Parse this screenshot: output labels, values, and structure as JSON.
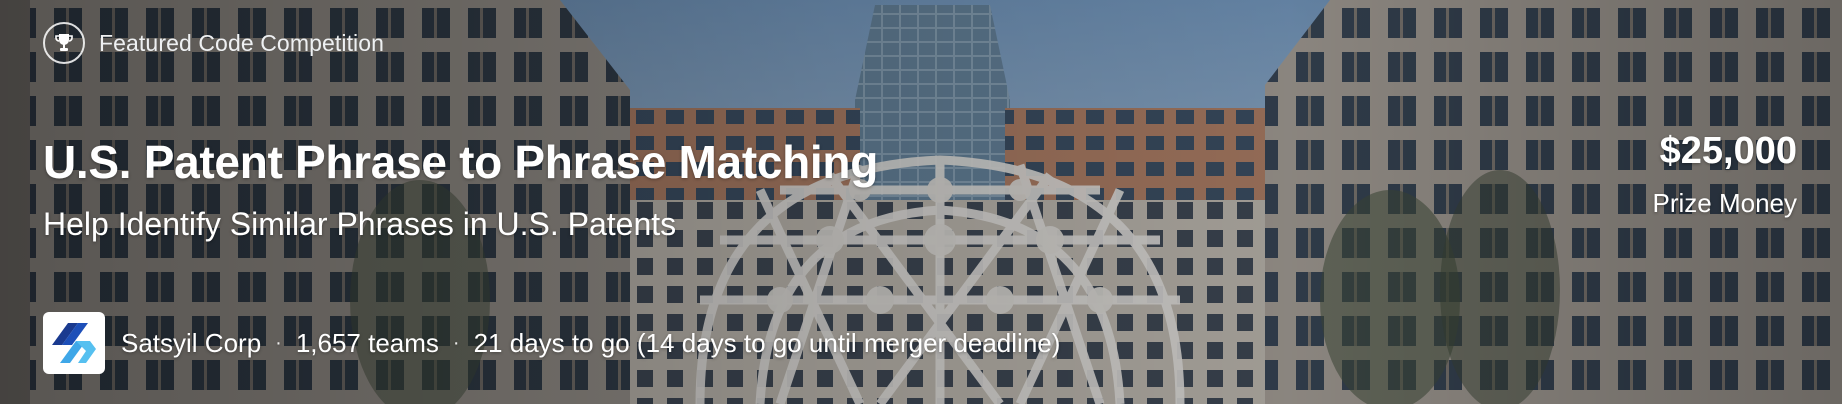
{
  "badge": {
    "icon": "trophy-icon",
    "label": "Featured Code Competition"
  },
  "competition": {
    "title": "U.S. Patent Phrase to Phrase Matching",
    "subtitle": "Help Identify Similar Phrases in U.S. Patents"
  },
  "prize": {
    "amount": "$25,000",
    "label": "Prize Money"
  },
  "footer": {
    "host_logo": "satsyil-corp-logo",
    "host": "Satsyil Corp",
    "separator": "·",
    "teams": "1,657 teams",
    "deadline": "21 days to go (14 days to go until merger deadline)"
  },
  "colors": {
    "text": "#ffffff",
    "logo_dark_blue": "#1a3a8f",
    "logo_light_blue": "#3fa7e8"
  }
}
